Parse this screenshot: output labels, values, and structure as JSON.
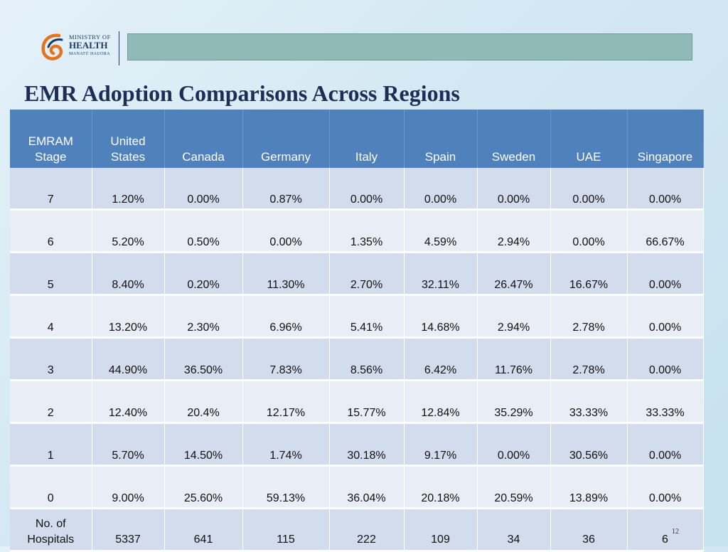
{
  "logo": {
    "line1": "MINISTRY OF",
    "line2": "HEALTH",
    "line3": "MANATŪ HAUORA"
  },
  "title": "EMR Adoption Comparisons Across Regions",
  "table": {
    "headers": [
      "EMRAM Stage",
      "United States",
      "Canada",
      "Germany",
      "Italy",
      "Spain",
      "Sweden",
      "UAE",
      "Singapore"
    ],
    "rows": [
      [
        "7",
        "1.20%",
        "0.00%",
        "0.87%",
        "0.00%",
        "0.00%",
        "0.00%",
        "0.00%",
        "0.00%"
      ],
      [
        "6",
        "5.20%",
        "0.50%",
        "0.00%",
        "1.35%",
        "4.59%",
        "2.94%",
        "0.00%",
        "66.67%"
      ],
      [
        "5",
        "8.40%",
        "0.20%",
        "11.30%",
        "2.70%",
        "32.11%",
        "26.47%",
        "16.67%",
        "0.00%"
      ],
      [
        "4",
        "13.20%",
        "2.30%",
        "6.96%",
        "5.41%",
        "14.68%",
        "2.94%",
        "2.78%",
        "0.00%"
      ],
      [
        "3",
        "44.90%",
        "36.50%",
        "7.83%",
        "8.56%",
        "6.42%",
        "11.76%",
        "2.78%",
        "0.00%"
      ],
      [
        "2",
        "12.40%",
        "20.4%",
        "12.17%",
        "15.77%",
        "12.84%",
        "35.29%",
        "33.33%",
        "33.33%"
      ],
      [
        "1",
        "5.70%",
        "14.50%",
        "1.74%",
        "30.18%",
        "9.17%",
        "0.00%",
        "30.56%",
        "0.00%"
      ],
      [
        "0",
        "9.00%",
        "25.60%",
        "59.13%",
        "36.04%",
        "20.18%",
        "20.59%",
        "13.89%",
        "0.00%"
      ],
      [
        "No. of Hospitals",
        "5337",
        "641",
        "115",
        "222",
        "109",
        "34",
        "36",
        "6"
      ]
    ]
  },
  "page_number": "12",
  "colors": {
    "header_blue": "#4f81bd",
    "row_odd": "#d3dcec",
    "row_even": "#e9edf5",
    "title_navy": "#1d2d55",
    "top_bar_teal": "#8fbab6"
  }
}
